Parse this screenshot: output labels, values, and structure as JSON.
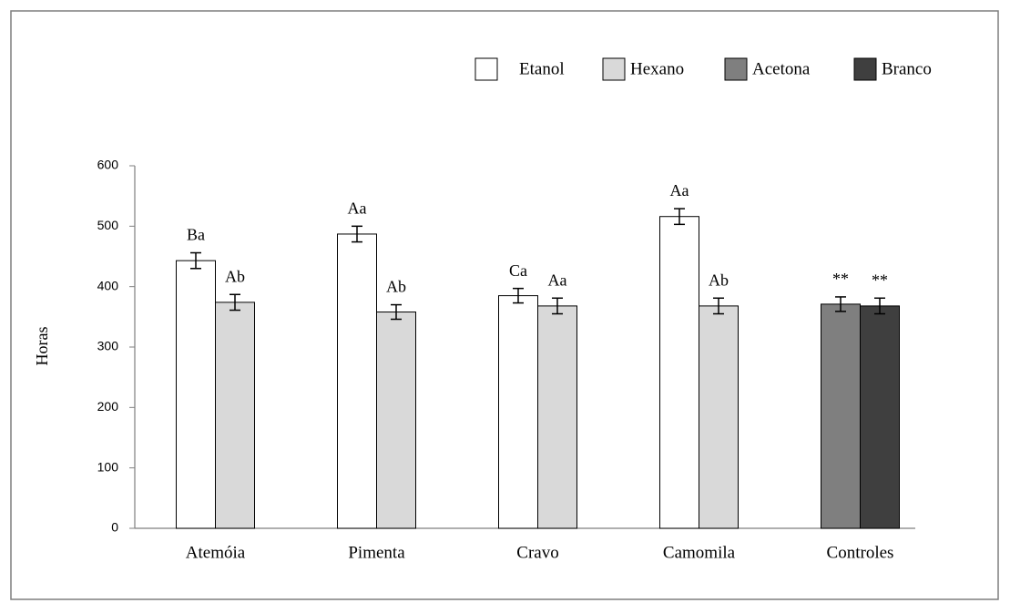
{
  "chart_data": {
    "type": "bar",
    "categories": [
      "Atemóia",
      "Pimenta",
      "Cravo",
      "Camomila",
      "Controles"
    ],
    "y_label": "Horas",
    "ylim": [
      0,
      600
    ],
    "yticks": [
      0,
      100,
      200,
      300,
      400,
      500,
      600
    ],
    "grid": false,
    "legend": "top-right",
    "series": [
      {
        "name": "Etanol",
        "color": "#ffffff",
        "values": [
          443,
          487,
          385,
          516,
          null
        ],
        "errors": [
          13,
          13,
          12,
          13,
          null
        ],
        "labels": [
          "Ba",
          "Aa",
          "Ca",
          "Aa",
          null
        ]
      },
      {
        "name": "Hexano",
        "color": "#d9d9d9",
        "values": [
          374,
          358,
          368,
          368,
          null
        ],
        "errors": [
          13,
          12,
          13,
          13,
          null
        ],
        "labels": [
          "Ab",
          "Ab",
          "Aa",
          "Ab",
          null
        ]
      },
      {
        "name": "Acetona",
        "color": "#7f7f7f",
        "values": [
          null,
          null,
          null,
          null,
          371
        ],
        "errors": [
          null,
          null,
          null,
          null,
          12
        ],
        "labels": [
          null,
          null,
          null,
          null,
          "**"
        ]
      },
      {
        "name": "Branco",
        "color": "#3f3f3f",
        "values": [
          null,
          null,
          null,
          null,
          368
        ],
        "errors": [
          null,
          null,
          null,
          null,
          13
        ],
        "labels": [
          null,
          null,
          null,
          null,
          "**"
        ]
      }
    ]
  }
}
